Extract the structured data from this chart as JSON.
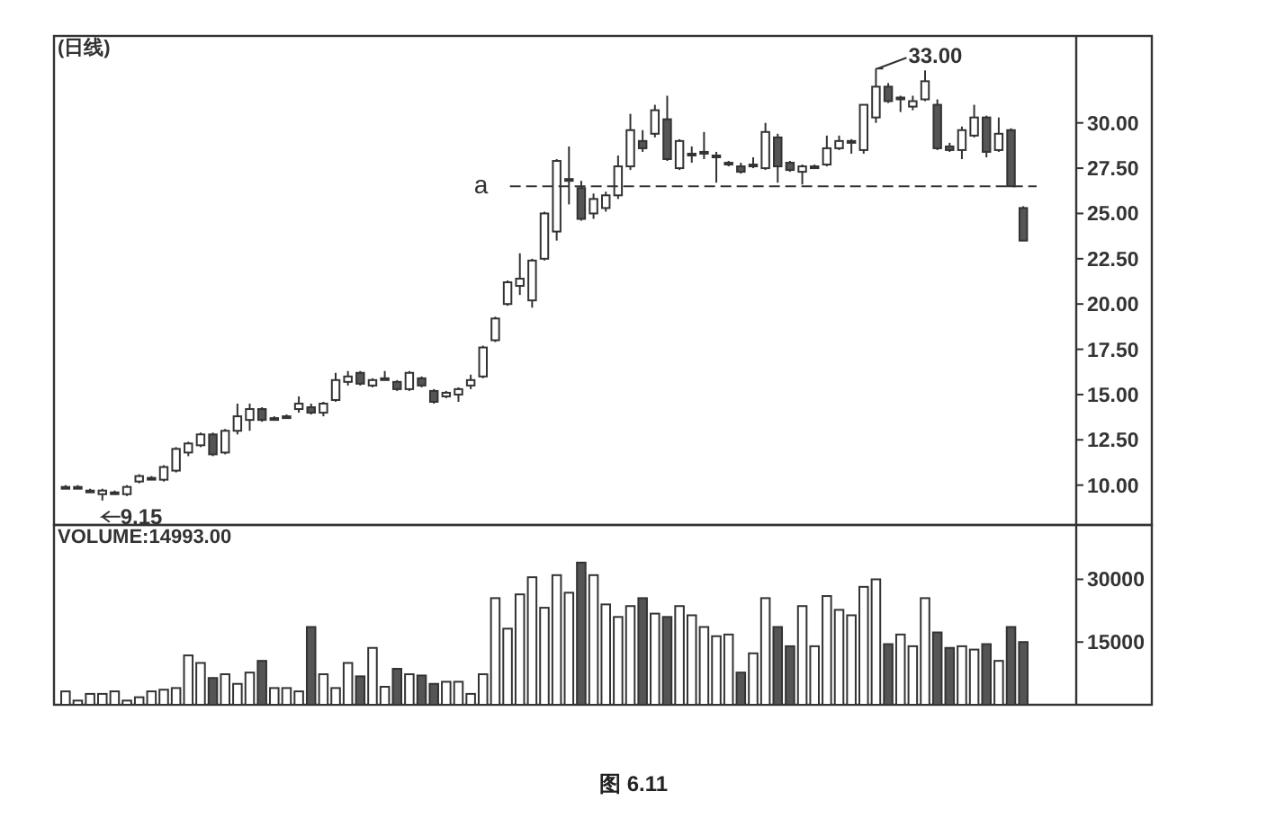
{
  "chart_data": [
    {
      "type": "candlestick",
      "title": "(日线)",
      "categories": [
        null,
        null,
        null,
        null,
        null,
        null,
        null,
        null,
        null,
        null,
        null,
        null,
        null,
        null,
        null,
        null,
        null,
        null,
        null,
        null,
        null,
        null,
        null,
        null,
        null,
        null,
        null,
        null,
        null,
        null,
        null,
        null,
        null,
        null,
        null,
        null,
        null,
        null,
        null,
        null,
        null,
        null,
        null,
        null,
        null,
        null,
        null,
        null,
        null,
        null,
        null,
        null,
        null,
        null,
        null,
        null,
        null,
        null,
        null,
        null,
        null,
        null,
        null,
        null,
        null,
        null,
        null,
        null,
        null,
        null,
        null,
        null,
        null,
        null,
        null,
        null,
        null,
        null,
        null
      ],
      "ohlc": [
        [
          9.9,
          10.0,
          9.8,
          9.9
        ],
        [
          9.9,
          10.0,
          9.8,
          9.9
        ],
        [
          9.7,
          9.8,
          9.6,
          9.7
        ],
        [
          9.5,
          9.8,
          9.15,
          9.7
        ],
        [
          9.6,
          9.7,
          9.5,
          9.6
        ],
        [
          9.5,
          10.0,
          9.4,
          9.9
        ],
        [
          10.2,
          10.6,
          10.1,
          10.5
        ],
        [
          10.4,
          10.5,
          10.3,
          10.4
        ],
        [
          10.3,
          11.1,
          10.2,
          11.0
        ],
        [
          10.8,
          12.1,
          10.7,
          12.0
        ],
        [
          11.8,
          12.4,
          11.6,
          12.3
        ],
        [
          12.2,
          12.9,
          12.1,
          12.8
        ],
        [
          12.8,
          12.9,
          11.6,
          11.7
        ],
        [
          11.8,
          13.1,
          11.7,
          13.0
        ],
        [
          13.0,
          14.5,
          12.8,
          13.8
        ],
        [
          13.6,
          14.5,
          13.0,
          14.2
        ],
        [
          14.2,
          14.3,
          13.5,
          13.6
        ],
        [
          13.7,
          13.8,
          13.6,
          13.7
        ],
        [
          13.8,
          13.9,
          13.7,
          13.8
        ],
        [
          14.2,
          14.9,
          14.0,
          14.5
        ],
        [
          14.3,
          14.5,
          13.9,
          14.0
        ],
        [
          14.0,
          14.6,
          13.8,
          14.5
        ],
        [
          14.7,
          16.2,
          14.6,
          15.8
        ],
        [
          15.7,
          16.3,
          15.5,
          16.0
        ],
        [
          16.2,
          16.3,
          15.5,
          15.6
        ],
        [
          15.5,
          15.9,
          15.4,
          15.8
        ],
        [
          15.9,
          16.3,
          15.8,
          15.9
        ],
        [
          15.7,
          15.8,
          15.2,
          15.3
        ],
        [
          15.3,
          16.3,
          15.2,
          16.2
        ],
        [
          15.9,
          16.0,
          15.4,
          15.5
        ],
        [
          15.2,
          15.3,
          14.5,
          14.6
        ],
        [
          14.9,
          15.2,
          14.8,
          15.1
        ],
        [
          15.0,
          15.4,
          14.6,
          15.3
        ],
        [
          15.5,
          16.1,
          15.3,
          15.8
        ],
        [
          16.0,
          17.7,
          15.9,
          17.6
        ],
        [
          18.0,
          19.3,
          17.9,
          19.2
        ],
        [
          20.0,
          21.3,
          19.9,
          21.2
        ],
        [
          21.0,
          22.8,
          20.5,
          21.4
        ],
        [
          20.2,
          22.5,
          19.8,
          22.4
        ],
        [
          22.5,
          25.1,
          22.4,
          25.0
        ],
        [
          24.0,
          28.0,
          23.5,
          27.9
        ],
        [
          26.8,
          28.7,
          25.5,
          26.9
        ],
        [
          26.4,
          26.8,
          24.6,
          24.7
        ],
        [
          25.0,
          26.1,
          24.7,
          25.8
        ],
        [
          25.3,
          26.2,
          25.1,
          26.0
        ],
        [
          26.0,
          28.2,
          25.8,
          27.6
        ],
        [
          27.6,
          30.5,
          27.4,
          29.6
        ],
        [
          29.0,
          29.6,
          28.4,
          28.6
        ],
        [
          29.4,
          31.0,
          29.2,
          30.7
        ],
        [
          30.2,
          31.5,
          27.9,
          28.0
        ],
        [
          27.5,
          29.1,
          27.4,
          29.0
        ],
        [
          28.3,
          28.7,
          27.8,
          28.3
        ],
        [
          28.3,
          29.5,
          28.0,
          28.4
        ],
        [
          28.2,
          28.4,
          26.7,
          28.2
        ],
        [
          27.8,
          27.9,
          27.6,
          27.8
        ],
        [
          27.6,
          27.8,
          27.2,
          27.3
        ],
        [
          27.7,
          28.1,
          27.5,
          27.7
        ],
        [
          27.5,
          30.0,
          27.4,
          29.5
        ],
        [
          29.2,
          29.4,
          26.7,
          27.6
        ],
        [
          27.8,
          27.9,
          27.3,
          27.4
        ],
        [
          27.3,
          27.7,
          26.6,
          27.6
        ],
        [
          27.6,
          27.7,
          27.5,
          27.6
        ],
        [
          27.7,
          29.3,
          27.6,
          28.6
        ],
        [
          28.6,
          29.3,
          28.5,
          29.0
        ],
        [
          29.0,
          29.1,
          28.3,
          29.0
        ],
        [
          28.5,
          31.0,
          28.3,
          31.0
        ],
        [
          30.3,
          33.0,
          30.0,
          32.0
        ],
        [
          32.0,
          32.2,
          31.1,
          31.2
        ],
        [
          31.4,
          31.5,
          30.6,
          31.4
        ],
        [
          30.9,
          31.5,
          30.7,
          31.2
        ],
        [
          31.3,
          32.9,
          31.2,
          32.3
        ],
        [
          31.0,
          31.3,
          28.5,
          28.6
        ],
        [
          28.7,
          28.9,
          28.4,
          28.5
        ],
        [
          28.5,
          29.8,
          28.0,
          29.6
        ],
        [
          29.3,
          31.0,
          29.2,
          30.3
        ],
        [
          30.3,
          30.4,
          28.1,
          28.4
        ],
        [
          28.5,
          30.3,
          28.4,
          29.4
        ],
        [
          29.6,
          29.7,
          26.5,
          26.5
        ],
        [
          25.3,
          25.4,
          23.5,
          23.5
        ]
      ],
      "ylim": [
        7.8,
        34.8
      ],
      "yticks": [
        {
          "value": 10,
          "label": "10.00"
        },
        {
          "value": 12.5,
          "label": "12.50"
        },
        {
          "value": 15,
          "label": "15.00"
        },
        {
          "value": 17.5,
          "label": "17.50"
        },
        {
          "value": 20,
          "label": "20.00"
        },
        {
          "value": 22.5,
          "label": "22.50"
        },
        {
          "value": 25,
          "label": "25.00"
        },
        {
          "value": 27.5,
          "label": "27.50"
        },
        {
          "value": 30,
          "label": "30.00"
        }
      ],
      "ref_lines": [
        {
          "axis": "y",
          "value": 26.5,
          "label": "a",
          "line_style": "dashed"
        }
      ],
      "annotations": [
        "33.00",
        "9.15"
      ],
      "grid": false
    },
    {
      "type": "bar",
      "title": "VOLUME:14993.00",
      "categories": [
        null,
        null,
        null,
        null,
        null,
        null,
        null,
        null,
        null,
        null,
        null,
        null,
        null,
        null,
        null,
        null,
        null,
        null,
        null,
        null,
        null,
        null,
        null,
        null,
        null,
        null,
        null,
        null,
        null,
        null,
        null,
        null,
        null,
        null,
        null,
        null,
        null,
        null,
        null,
        null,
        null,
        null,
        null,
        null,
        null,
        null,
        null,
        null,
        null,
        null,
        null,
        null,
        null,
        null,
        null,
        null,
        null,
        null,
        null,
        null,
        null,
        null,
        null,
        null,
        null,
        null,
        null,
        null,
        null,
        null,
        null,
        null,
        null,
        null,
        null,
        null,
        null,
        null,
        null
      ],
      "values": [
        3200,
        1000,
        2600,
        2600,
        3200,
        1000,
        1800,
        3200,
        3600,
        4000,
        11800,
        10000,
        6400,
        7300,
        5000,
        7700,
        10500,
        4000,
        4000,
        3200,
        18600,
        7300,
        4000,
        10000,
        6800,
        13600,
        4300,
        8600,
        7300,
        7000,
        5000,
        5500,
        5500,
        2600,
        7300,
        25500,
        18200,
        26400,
        30500,
        23200,
        31000,
        26800,
        34000,
        31000,
        24000,
        21000,
        23600,
        25500,
        21800,
        21000,
        23600,
        21400,
        18600,
        16400,
        16800,
        7700,
        12300,
        25500,
        18600,
        14000,
        23600,
        14000,
        26000,
        22700,
        21400,
        28200,
        30000,
        14500,
        16800,
        14000,
        25500,
        17300,
        13600,
        14000,
        13200,
        14500,
        10500,
        18600,
        15000
      ],
      "ylim": [
        0,
        43000
      ],
      "yticks": [
        15000,
        30000
      ],
      "annotations": [
        "图 6.11"
      ],
      "grid": false
    }
  ]
}
